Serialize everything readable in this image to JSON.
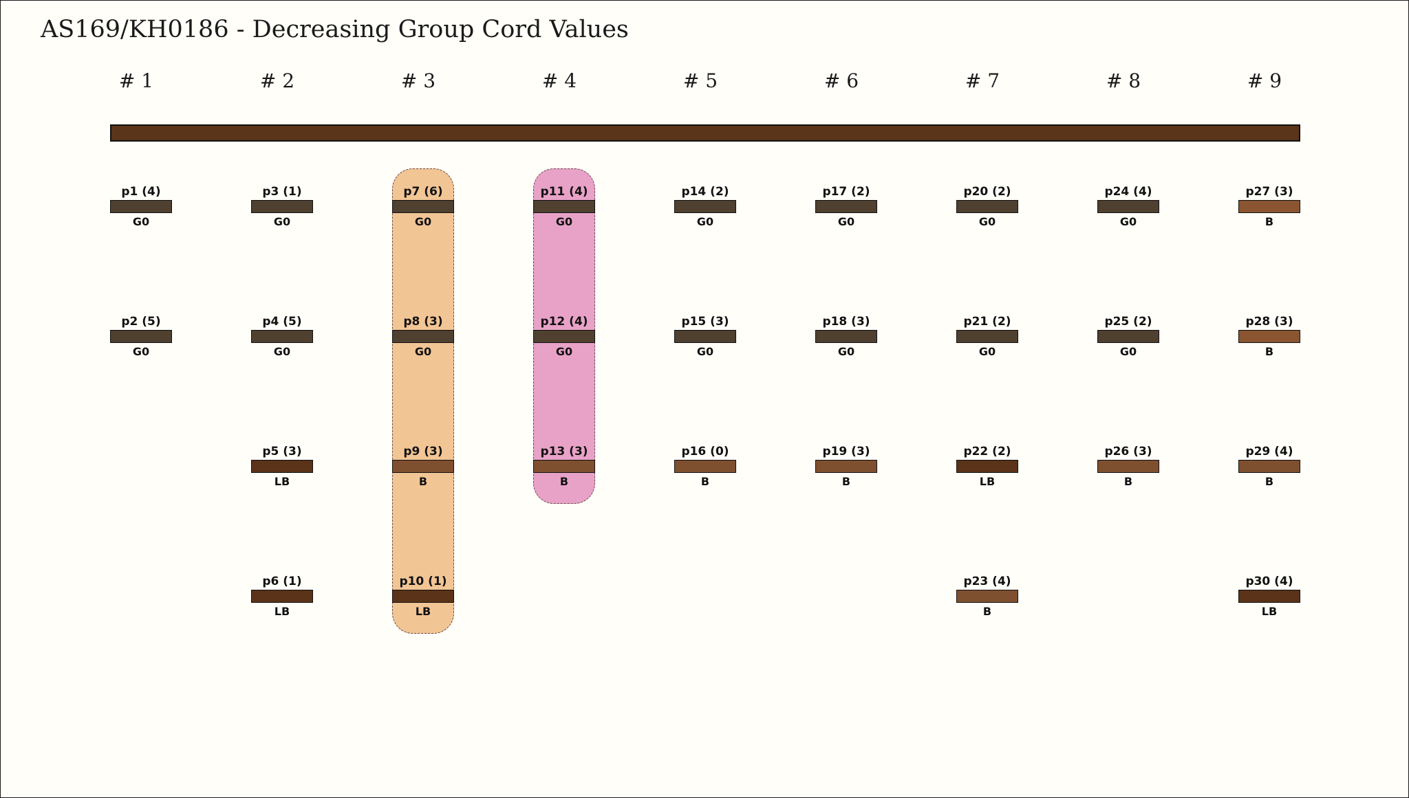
{
  "title": "AS169/KH0186 - Decreasing Group Cord Values",
  "group_labels": [
    "# 1",
    "# 2",
    "# 3",
    "# 4",
    "# 5",
    "# 6",
    "# 7",
    "# 8",
    "# 9"
  ],
  "colors": {
    "main_cord": "#5a3519",
    "G0": "#4f4030",
    "B": "#7f5030",
    "B_light": "#8a5530",
    "LB": "#5a3319",
    "highlight_group3": "#f2c595",
    "highlight_group4": "#e8a2c7"
  },
  "highlighted_groups": [
    {
      "group": "# 3",
      "color": "#f2c595"
    },
    {
      "group": "# 4",
      "color": "#e8a2c7"
    }
  ],
  "cords": [
    {
      "group": 1,
      "row": 1,
      "label": "p1 (4)",
      "color_code": "G0"
    },
    {
      "group": 1,
      "row": 2,
      "label": "p2 (5)",
      "color_code": "G0"
    },
    {
      "group": 2,
      "row": 1,
      "label": "p3 (1)",
      "color_code": "G0"
    },
    {
      "group": 2,
      "row": 2,
      "label": "p4 (5)",
      "color_code": "G0"
    },
    {
      "group": 2,
      "row": 3,
      "label": "p5 (3)",
      "color_code": "LB"
    },
    {
      "group": 2,
      "row": 4,
      "label": "p6 (1)",
      "color_code": "LB"
    },
    {
      "group": 3,
      "row": 1,
      "label": "p7 (6)",
      "color_code": "G0"
    },
    {
      "group": 3,
      "row": 2,
      "label": "p8 (3)",
      "color_code": "G0"
    },
    {
      "group": 3,
      "row": 3,
      "label": "p9 (3)",
      "color_code": "B"
    },
    {
      "group": 3,
      "row": 4,
      "label": "p10 (1)",
      "color_code": "LB"
    },
    {
      "group": 4,
      "row": 1,
      "label": "p11 (4)",
      "color_code": "G0"
    },
    {
      "group": 4,
      "row": 2,
      "label": "p12 (4)",
      "color_code": "G0"
    },
    {
      "group": 4,
      "row": 3,
      "label": "p13 (3)",
      "color_code": "B"
    },
    {
      "group": 5,
      "row": 1,
      "label": "p14 (2)",
      "color_code": "G0"
    },
    {
      "group": 5,
      "row": 2,
      "label": "p15 (3)",
      "color_code": "G0"
    },
    {
      "group": 5,
      "row": 3,
      "label": "p16 (0)",
      "color_code": "B"
    },
    {
      "group": 6,
      "row": 1,
      "label": "p17 (2)",
      "color_code": "G0"
    },
    {
      "group": 6,
      "row": 2,
      "label": "p18 (3)",
      "color_code": "G0"
    },
    {
      "group": 6,
      "row": 3,
      "label": "p19 (3)",
      "color_code": "B"
    },
    {
      "group": 7,
      "row": 1,
      "label": "p20 (2)",
      "color_code": "G0"
    },
    {
      "group": 7,
      "row": 2,
      "label": "p21 (2)",
      "color_code": "G0"
    },
    {
      "group": 7,
      "row": 3,
      "label": "p22 (2)",
      "color_code": "LB"
    },
    {
      "group": 7,
      "row": 4,
      "label": "p23 (4)",
      "color_code": "B"
    },
    {
      "group": 8,
      "row": 1,
      "label": "p24 (4)",
      "color_code": "G0"
    },
    {
      "group": 8,
      "row": 2,
      "label": "p25 (2)",
      "color_code": "G0"
    },
    {
      "group": 8,
      "row": 3,
      "label": "p26 (3)",
      "color_code": "B"
    },
    {
      "group": 9,
      "row": 1,
      "label": "p27 (3)",
      "color_code": "B",
      "color": "#8a5530"
    },
    {
      "group": 9,
      "row": 2,
      "label": "p28 (3)",
      "color_code": "B",
      "color": "#8a5530"
    },
    {
      "group": 9,
      "row": 3,
      "label": "p29 (4)",
      "color_code": "B"
    },
    {
      "group": 9,
      "row": 4,
      "label": "p30 (4)",
      "color_code": "LB"
    }
  ]
}
